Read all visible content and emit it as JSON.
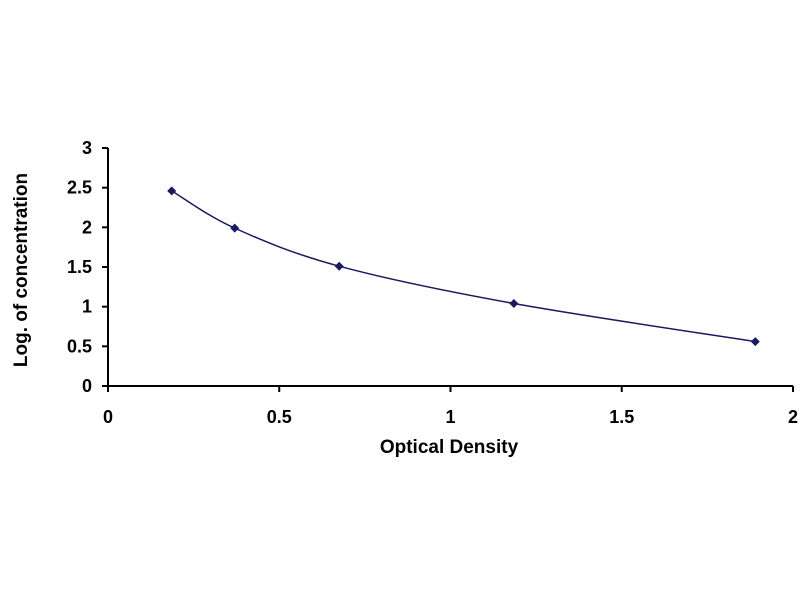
{
  "chart_data": {
    "type": "scatter",
    "title": "",
    "xlabel": "Optical Density",
    "ylabel": "Log. of concentration",
    "xlim": [
      0,
      2
    ],
    "ylim": [
      0,
      3
    ],
    "x_ticks": [
      "0",
      "0.5",
      "1",
      "1.5",
      "2"
    ],
    "y_ticks": [
      "0",
      "0.5",
      "1",
      "1.5",
      "2",
      "2.5",
      "3"
    ],
    "grid": false,
    "legend": "none",
    "trendline": "smooth-fit",
    "series": [
      {
        "points": [
          {
            "x": 0.186,
            "y": 2.46
          },
          {
            "x": 0.37,
            "y": 1.99
          },
          {
            "x": 0.675,
            "y": 1.51
          },
          {
            "x": 1.185,
            "y": 1.04
          },
          {
            "x": 1.89,
            "y": 0.56
          }
        ],
        "color": "#1a1a5e"
      }
    ],
    "colors": {
      "axis": "#000000",
      "marker": "#1a1a5e",
      "line": "#1a1a5e"
    }
  }
}
